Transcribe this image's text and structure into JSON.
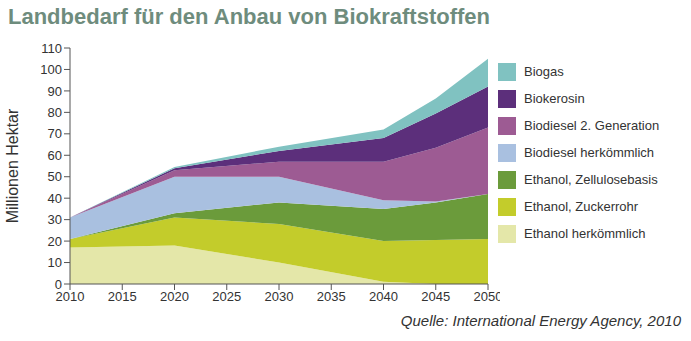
{
  "chart_data": {
    "type": "area",
    "title": "Landbedarf für den Anbau von Biokraftstoffen",
    "y_label": "Millionen Hektar",
    "annotations": [
      "Quelle: International Energy Agency, 2010"
    ],
    "x": [
      2010,
      2020,
      2030,
      2040,
      2045,
      2050
    ],
    "xlim": [
      2010,
      2050
    ],
    "xticks": [
      2010,
      2015,
      2020,
      2025,
      2030,
      2035,
      2040,
      2045,
      2050
    ],
    "ylim": [
      0,
      110
    ],
    "yticks": [
      0,
      10,
      20,
      30,
      40,
      50,
      60,
      70,
      80,
      90,
      100,
      110
    ],
    "stacked": true,
    "grid": false,
    "legend": "right",
    "series": [
      {
        "name": "Ethanol herkömmlich",
        "color": "#e4e7a9",
        "values": [
          17,
          18,
          10,
          1,
          0,
          0
        ]
      },
      {
        "name": "Ethanol, Zuckerrohr",
        "color": "#c3cc2b",
        "values": [
          4,
          13,
          18,
          19,
          20.5,
          21
        ]
      },
      {
        "name": "Ethanol, Zellulosebasis",
        "color": "#6b9b3b",
        "values": [
          0,
          2,
          10,
          15,
          17.5,
          21
        ]
      },
      {
        "name": "Biodiesel herkömmlich",
        "color": "#a9c0e0",
        "values": [
          10,
          17,
          12,
          4,
          0.5,
          0
        ]
      },
      {
        "name": "Biodiesel 2. Generation",
        "color": "#9d5b93",
        "values": [
          0,
          3,
          7,
          18,
          25,
          31
        ]
      },
      {
        "name": "Biokerosin",
        "color": "#5c2f7b",
        "values": [
          0,
          1,
          5,
          11,
          16,
          19
        ]
      },
      {
        "name": "Biogas",
        "color": "#80c2c1",
        "values": [
          0,
          0.5,
          2,
          4,
          7,
          13
        ]
      }
    ]
  }
}
